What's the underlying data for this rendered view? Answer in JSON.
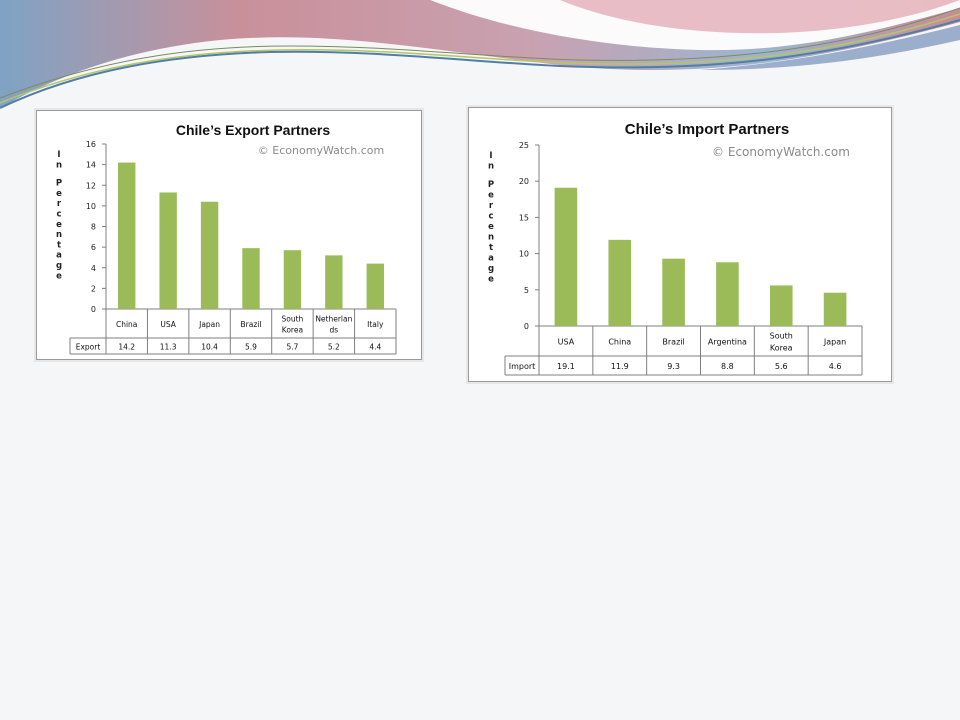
{
  "source_note": "© EconomyWatch.com",
  "colors": {
    "bar": "#9bbb59",
    "grid_border": "#7f7f7f"
  },
  "chart_data": [
    {
      "type": "bar",
      "title": "Chile’s Export Partners",
      "ylabel": "In Percentage",
      "categories": [
        "China",
        "USA",
        "Japan",
        "Brazil",
        "South Korea",
        "Netherlands",
        "Italy"
      ],
      "category_display": [
        [
          "China"
        ],
        [
          "USA"
        ],
        [
          "Japan"
        ],
        [
          "Brazil"
        ],
        [
          "South",
          "Korea"
        ],
        [
          "Netherlan",
          "ds"
        ],
        [
          "Italy"
        ]
      ],
      "ylim": [
        0,
        16
      ],
      "yticks": [
        0,
        2,
        4,
        6,
        8,
        10,
        12,
        14,
        16
      ],
      "series": [
        {
          "name": "Export",
          "values": [
            14.2,
            11.3,
            10.4,
            5.9,
            5.7,
            5.2,
            4.4
          ]
        }
      ],
      "value_labels": [
        "14.2",
        "11.3",
        "10.4",
        "5.9",
        "5.7",
        "5.2",
        "4.4"
      ],
      "legend": "none",
      "grid": false
    },
    {
      "type": "bar",
      "title": "Chile’s Import Partners",
      "ylabel": "In Percentage",
      "categories": [
        "USA",
        "China",
        "Brazil",
        "Argentina",
        "South Korea",
        "Japan"
      ],
      "category_display": [
        [
          "USA"
        ],
        [
          "China"
        ],
        [
          "Brazil"
        ],
        [
          "Argentina"
        ],
        [
          "South",
          "Korea"
        ],
        [
          "Japan"
        ]
      ],
      "ylim": [
        0,
        25
      ],
      "yticks": [
        0,
        5,
        10,
        15,
        20,
        25
      ],
      "series": [
        {
          "name": "Import",
          "values": [
            19.1,
            11.9,
            9.3,
            8.8,
            5.6,
            4.6
          ]
        }
      ],
      "value_labels": [
        "19.1",
        "11.9",
        "9.3",
        "8.8",
        "5.6",
        "4.6"
      ],
      "legend": "none",
      "grid": false
    }
  ]
}
